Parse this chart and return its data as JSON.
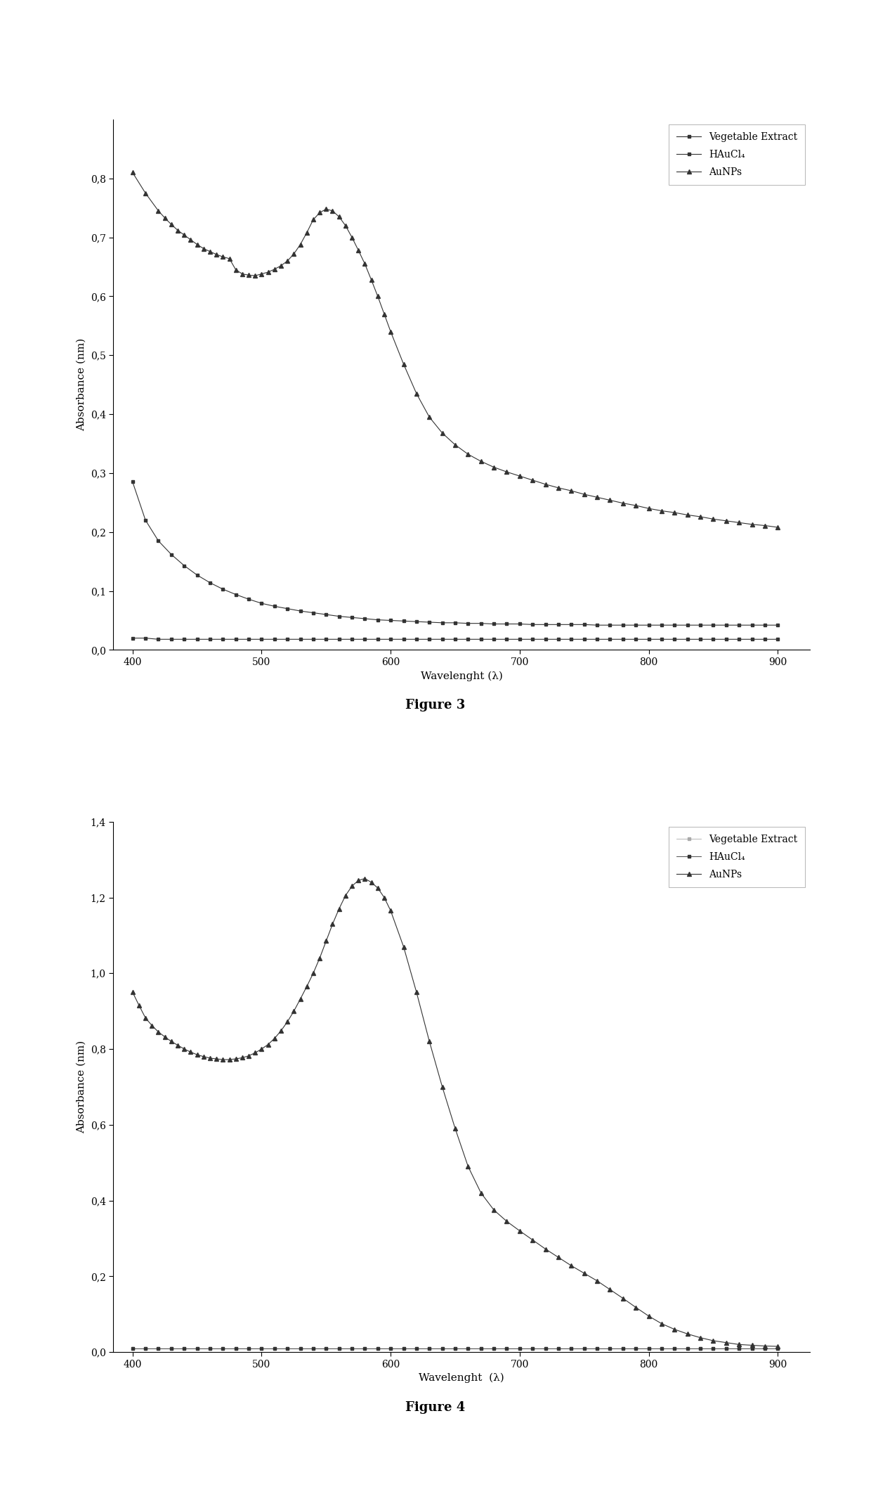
{
  "fig3": {
    "xlabel": "Wavelenght (λ)",
    "ylabel": "Absorbance (nm)",
    "xlim": [
      385,
      925
    ],
    "ylim": [
      0.0,
      0.9
    ],
    "yticks": [
      0.0,
      0.1,
      0.2,
      0.3,
      0.4,
      0.5,
      0.6,
      0.7,
      0.8
    ],
    "xticks": [
      400,
      500,
      600,
      700,
      800,
      900
    ],
    "legend_labels": [
      "Vegetable Extract",
      "HAuCl₄",
      "AuNPs"
    ],
    "series": {
      "vegetable_extract": {
        "x": [
          400,
          410,
          420,
          430,
          440,
          450,
          460,
          470,
          480,
          490,
          500,
          510,
          520,
          530,
          540,
          550,
          560,
          570,
          580,
          590,
          600,
          610,
          620,
          630,
          640,
          650,
          660,
          670,
          680,
          690,
          700,
          710,
          720,
          730,
          740,
          750,
          760,
          770,
          780,
          790,
          800,
          810,
          820,
          830,
          840,
          850,
          860,
          870,
          880,
          890,
          900
        ],
        "y": [
          0.02,
          0.02,
          0.018,
          0.018,
          0.018,
          0.018,
          0.018,
          0.018,
          0.018,
          0.018,
          0.018,
          0.018,
          0.018,
          0.018,
          0.018,
          0.018,
          0.018,
          0.018,
          0.018,
          0.018,
          0.018,
          0.018,
          0.018,
          0.018,
          0.018,
          0.018,
          0.018,
          0.018,
          0.018,
          0.018,
          0.018,
          0.018,
          0.018,
          0.018,
          0.018,
          0.018,
          0.018,
          0.018,
          0.018,
          0.018,
          0.018,
          0.018,
          0.018,
          0.018,
          0.018,
          0.018,
          0.018,
          0.018,
          0.018,
          0.018,
          0.018
        ],
        "marker": "s",
        "color": "#333333",
        "linewidth": 0.8,
        "markersize": 3.5
      },
      "haucl4": {
        "x": [
          400,
          410,
          420,
          430,
          440,
          450,
          460,
          470,
          480,
          490,
          500,
          510,
          520,
          530,
          540,
          550,
          560,
          570,
          580,
          590,
          600,
          610,
          620,
          630,
          640,
          650,
          660,
          670,
          680,
          690,
          700,
          710,
          720,
          730,
          740,
          750,
          760,
          770,
          780,
          790,
          800,
          810,
          820,
          830,
          840,
          850,
          860,
          870,
          880,
          890,
          900
        ],
        "y": [
          0.285,
          0.22,
          0.185,
          0.162,
          0.143,
          0.127,
          0.114,
          0.103,
          0.094,
          0.086,
          0.079,
          0.074,
          0.07,
          0.066,
          0.063,
          0.06,
          0.057,
          0.055,
          0.053,
          0.051,
          0.05,
          0.049,
          0.048,
          0.047,
          0.046,
          0.046,
          0.045,
          0.045,
          0.044,
          0.044,
          0.044,
          0.043,
          0.043,
          0.043,
          0.043,
          0.043,
          0.042,
          0.042,
          0.042,
          0.042,
          0.042,
          0.042,
          0.042,
          0.042,
          0.042,
          0.042,
          0.042,
          0.042,
          0.042,
          0.042,
          0.042
        ],
        "marker": "s",
        "color": "#333333",
        "linewidth": 0.8,
        "markersize": 3.5
      },
      "aunps": {
        "x": [
          400,
          410,
          420,
          425,
          430,
          435,
          440,
          445,
          450,
          455,
          460,
          465,
          470,
          475,
          480,
          485,
          490,
          495,
          500,
          505,
          510,
          515,
          520,
          525,
          530,
          535,
          540,
          545,
          550,
          555,
          560,
          565,
          570,
          575,
          580,
          585,
          590,
          595,
          600,
          610,
          620,
          630,
          640,
          650,
          660,
          670,
          680,
          690,
          700,
          710,
          720,
          730,
          740,
          750,
          760,
          770,
          780,
          790,
          800,
          810,
          820,
          830,
          840,
          850,
          860,
          870,
          880,
          890,
          900
        ],
        "y": [
          0.81,
          0.775,
          0.745,
          0.733,
          0.722,
          0.712,
          0.704,
          0.696,
          0.688,
          0.681,
          0.676,
          0.671,
          0.667,
          0.664,
          0.645,
          0.638,
          0.636,
          0.635,
          0.638,
          0.641,
          0.646,
          0.652,
          0.66,
          0.672,
          0.688,
          0.708,
          0.73,
          0.742,
          0.748,
          0.745,
          0.735,
          0.72,
          0.7,
          0.678,
          0.655,
          0.628,
          0.6,
          0.57,
          0.54,
          0.485,
          0.435,
          0.395,
          0.368,
          0.348,
          0.332,
          0.32,
          0.31,
          0.302,
          0.295,
          0.288,
          0.281,
          0.275,
          0.27,
          0.264,
          0.259,
          0.254,
          0.249,
          0.245,
          0.24,
          0.236,
          0.233,
          0.229,
          0.226,
          0.222,
          0.219,
          0.216,
          0.213,
          0.211,
          0.208
        ],
        "marker": "^",
        "color": "#333333",
        "linewidth": 0.8,
        "markersize": 4
      }
    }
  },
  "fig4": {
    "xlabel": "Wavelenght  (λ)",
    "ylabel": "Absorbance (nm)",
    "xlim": [
      385,
      925
    ],
    "ylim": [
      0.0,
      1.4
    ],
    "yticks": [
      0.0,
      0.2,
      0.4,
      0.6,
      0.8,
      1.0,
      1.2,
      1.4
    ],
    "xticks": [
      400,
      500,
      600,
      700,
      800,
      900
    ],
    "legend_labels": [
      "Vegetable Extract",
      "HAuCl₄",
      "AuNPs"
    ],
    "series": {
      "vegetable_extract": {
        "x": [
          400,
          410,
          420,
          430,
          440,
          450,
          460,
          470,
          480,
          490,
          500,
          510,
          520,
          530,
          540,
          550,
          560,
          570,
          580,
          590,
          600,
          610,
          620,
          630,
          640,
          650,
          660,
          670,
          680,
          690,
          700,
          710,
          720,
          730,
          740,
          750,
          760,
          770,
          780,
          790,
          800,
          810,
          820,
          830,
          840,
          850,
          860,
          870,
          880,
          890,
          900
        ],
        "y": [
          0.01,
          0.01,
          0.01,
          0.01,
          0.01,
          0.01,
          0.01,
          0.01,
          0.01,
          0.01,
          0.01,
          0.01,
          0.01,
          0.01,
          0.01,
          0.01,
          0.01,
          0.01,
          0.01,
          0.01,
          0.01,
          0.01,
          0.01,
          0.01,
          0.01,
          0.01,
          0.01,
          0.01,
          0.01,
          0.01,
          0.01,
          0.01,
          0.01,
          0.01,
          0.01,
          0.01,
          0.01,
          0.01,
          0.01,
          0.01,
          0.01,
          0.01,
          0.01,
          0.01,
          0.01,
          0.01,
          0.01,
          0.01,
          0.01,
          0.01,
          0.01
        ],
        "marker": "s",
        "color": "#aaaaaa",
        "linewidth": 0.6,
        "markersize": 2.5
      },
      "haucl4": {
        "x": [
          400,
          410,
          420,
          430,
          440,
          450,
          460,
          470,
          480,
          490,
          500,
          510,
          520,
          530,
          540,
          550,
          560,
          570,
          580,
          590,
          600,
          610,
          620,
          630,
          640,
          650,
          660,
          670,
          680,
          690,
          700,
          710,
          720,
          730,
          740,
          750,
          760,
          770,
          780,
          790,
          800,
          810,
          820,
          830,
          840,
          850,
          860,
          870,
          880,
          890,
          900
        ],
        "y": [
          0.01,
          0.01,
          0.01,
          0.01,
          0.01,
          0.01,
          0.01,
          0.01,
          0.01,
          0.01,
          0.01,
          0.01,
          0.01,
          0.01,
          0.01,
          0.01,
          0.01,
          0.01,
          0.01,
          0.01,
          0.01,
          0.01,
          0.01,
          0.01,
          0.01,
          0.01,
          0.01,
          0.01,
          0.01,
          0.01,
          0.01,
          0.01,
          0.01,
          0.01,
          0.01,
          0.01,
          0.01,
          0.01,
          0.01,
          0.01,
          0.01,
          0.01,
          0.01,
          0.01,
          0.01,
          0.01,
          0.01,
          0.01,
          0.01,
          0.01,
          0.01
        ],
        "marker": "s",
        "color": "#333333",
        "linewidth": 0.6,
        "markersize": 2.5
      },
      "aunps": {
        "x": [
          400,
          405,
          410,
          415,
          420,
          425,
          430,
          435,
          440,
          445,
          450,
          455,
          460,
          465,
          470,
          475,
          480,
          485,
          490,
          495,
          500,
          505,
          510,
          515,
          520,
          525,
          530,
          535,
          540,
          545,
          550,
          555,
          560,
          565,
          570,
          575,
          580,
          585,
          590,
          595,
          600,
          610,
          620,
          630,
          640,
          650,
          660,
          670,
          680,
          690,
          700,
          710,
          720,
          730,
          740,
          750,
          760,
          770,
          780,
          790,
          800,
          810,
          820,
          830,
          840,
          850,
          860,
          870,
          880,
          890,
          900
        ],
        "y": [
          0.95,
          0.915,
          0.882,
          0.862,
          0.845,
          0.832,
          0.82,
          0.81,
          0.8,
          0.792,
          0.785,
          0.78,
          0.776,
          0.774,
          0.772,
          0.772,
          0.774,
          0.777,
          0.782,
          0.79,
          0.8,
          0.812,
          0.828,
          0.848,
          0.872,
          0.9,
          0.932,
          0.965,
          1.0,
          1.04,
          1.085,
          1.13,
          1.17,
          1.205,
          1.23,
          1.245,
          1.25,
          1.24,
          1.225,
          1.2,
          1.165,
          1.07,
          0.95,
          0.82,
          0.7,
          0.59,
          0.49,
          0.42,
          0.375,
          0.345,
          0.32,
          0.296,
          0.272,
          0.25,
          0.228,
          0.208,
          0.188,
          0.165,
          0.142,
          0.118,
          0.095,
          0.075,
          0.06,
          0.048,
          0.038,
          0.03,
          0.025,
          0.02,
          0.018,
          0.016,
          0.015
        ],
        "marker": "^",
        "color": "#333333",
        "linewidth": 0.8,
        "markersize": 4
      }
    }
  },
  "figure_labels": [
    "Figure 3",
    "Figure 4"
  ],
  "background_color": "#ffffff"
}
